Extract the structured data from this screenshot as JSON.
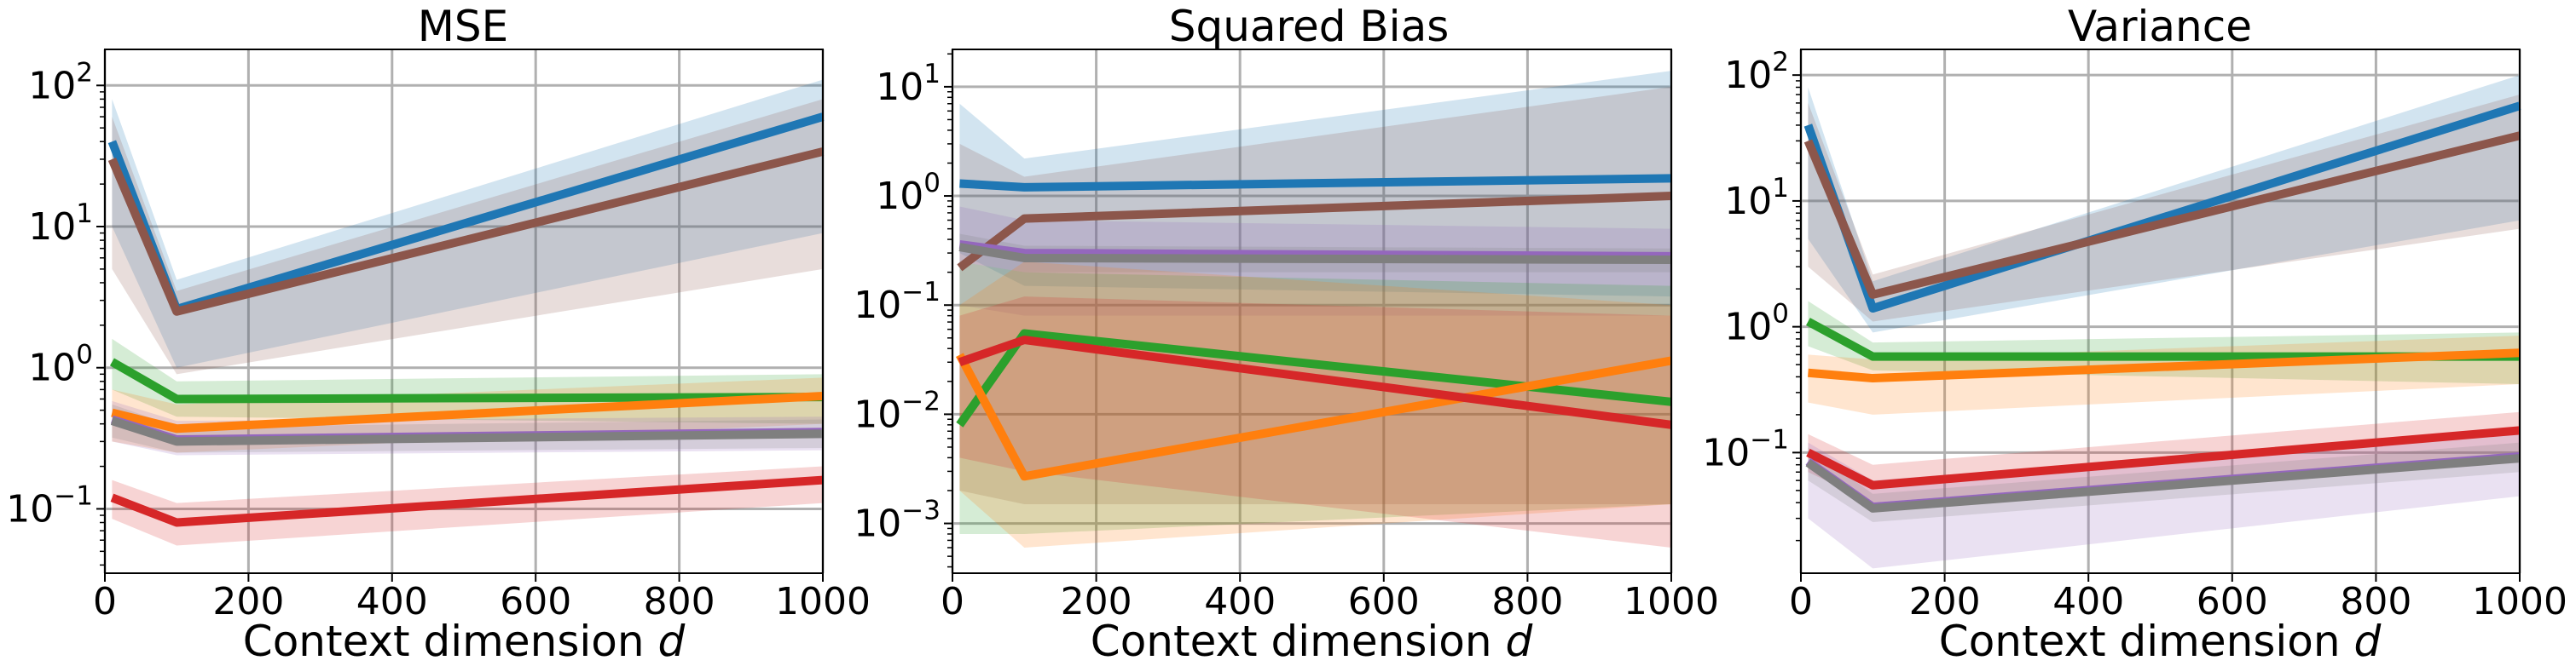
{
  "chart_data": [
    {
      "type": "line",
      "title": "MSE",
      "xlabel": "Context dimension",
      "xlabel_var": "d",
      "ylabel": "",
      "yscale": "log",
      "xlim": [
        0,
        1000
      ],
      "ylim": [
        0.035,
        180
      ],
      "xticks": [
        0,
        200,
        400,
        600,
        800,
        1000
      ],
      "yticks": [
        {
          "value": 0.1,
          "base": "10",
          "exp": "−1"
        },
        {
          "value": 1,
          "base": "10",
          "exp": "0"
        },
        {
          "value": 10,
          "base": "10",
          "exp": "1"
        },
        {
          "value": 100,
          "base": "10",
          "exp": "2"
        }
      ],
      "grid": true,
      "x": [
        10,
        100,
        1000
      ],
      "series": [
        {
          "color": "#1f77b4",
          "values": [
            40,
            2.6,
            60
          ],
          "lower": [
            10,
            1.0,
            9
          ],
          "upper": [
            80,
            4.2,
            110
          ]
        },
        {
          "color": "#8c564b",
          "values": [
            30,
            2.5,
            34
          ],
          "lower": [
            5,
            0.9,
            5
          ],
          "upper": [
            60,
            3.5,
            80
          ]
        },
        {
          "color": "#2ca02c",
          "values": [
            1.1,
            0.6,
            0.62
          ],
          "lower": [
            0.7,
            0.45,
            0.4
          ],
          "upper": [
            1.6,
            0.8,
            0.9
          ]
        },
        {
          "color": "#ff7f0e",
          "values": [
            0.48,
            0.37,
            0.63
          ],
          "lower": [
            0.3,
            0.25,
            0.4
          ],
          "upper": [
            0.7,
            0.55,
            0.85
          ]
        },
        {
          "color": "#9467bd",
          "values": [
            0.43,
            0.31,
            0.35
          ],
          "lower": [
            0.3,
            0.24,
            0.26
          ],
          "upper": [
            0.58,
            0.42,
            0.45
          ]
        },
        {
          "color": "#7f7f7f",
          "values": [
            0.42,
            0.3,
            0.34
          ],
          "lower": [
            0.32,
            0.25,
            0.27
          ],
          "upper": [
            0.55,
            0.38,
            0.43
          ]
        },
        {
          "color": "#d62728",
          "values": [
            0.12,
            0.08,
            0.16
          ],
          "lower": [
            0.085,
            0.055,
            0.11
          ],
          "upper": [
            0.16,
            0.11,
            0.2
          ]
        }
      ]
    },
    {
      "type": "line",
      "title": "Squared Bias",
      "xlabel": "Context dimension",
      "xlabel_var": "d",
      "ylabel": "",
      "yscale": "log",
      "xlim": [
        0,
        1000
      ],
      "ylim": [
        0.00035,
        22
      ],
      "xticks": [
        0,
        200,
        400,
        600,
        800,
        1000
      ],
      "yticks": [
        {
          "value": 0.001,
          "base": "10",
          "exp": "−3"
        },
        {
          "value": 0.01,
          "base": "10",
          "exp": "−2"
        },
        {
          "value": 0.1,
          "base": "10",
          "exp": "−1"
        },
        {
          "value": 1,
          "base": "10",
          "exp": "0"
        },
        {
          "value": 10,
          "base": "10",
          "exp": "1"
        }
      ],
      "grid": true,
      "x": [
        10,
        100,
        1000
      ],
      "series": [
        {
          "color": "#1f77b4",
          "values": [
            1.3,
            1.2,
            1.45
          ],
          "lower": [
            0.3,
            0.15,
            0.12
          ],
          "upper": [
            7.0,
            2.2,
            14.0
          ]
        },
        {
          "color": "#8c564b",
          "values": [
            0.22,
            0.62,
            1.0
          ],
          "lower": [
            0.002,
            0.0015,
            0.0015
          ],
          "upper": [
            3.0,
            1.5,
            10.0
          ]
        },
        {
          "color": "#9467bd",
          "values": [
            0.36,
            0.3,
            0.28
          ],
          "lower": [
            0.1,
            0.08,
            0.08
          ],
          "upper": [
            0.8,
            0.6,
            0.5
          ]
        },
        {
          "color": "#7f7f7f",
          "values": [
            0.34,
            0.27,
            0.26
          ],
          "lower": [
            0.25,
            0.2,
            0.2
          ],
          "upper": [
            0.45,
            0.35,
            0.33
          ]
        },
        {
          "color": "#2ca02c",
          "values": [
            0.008,
            0.055,
            0.013
          ],
          "lower": [
            0.0008,
            0.0008,
            0.0015
          ],
          "upper": [
            0.25,
            0.2,
            0.15
          ]
        },
        {
          "color": "#ff7f0e",
          "values": [
            0.035,
            0.0027,
            0.031
          ],
          "lower": [
            0.002,
            0.0006,
            0.0015
          ],
          "upper": [
            0.1,
            0.25,
            0.1
          ]
        },
        {
          "color": "#d62728",
          "values": [
            0.03,
            0.048,
            0.008
          ],
          "lower": [
            0.004,
            0.003,
            0.0006
          ],
          "upper": [
            0.08,
            0.12,
            0.08
          ]
        }
      ]
    },
    {
      "type": "line",
      "title": "Variance",
      "xlabel": "Context dimension",
      "xlabel_var": "d",
      "ylabel": "",
      "yscale": "log",
      "xlim": [
        0,
        1000
      ],
      "ylim": [
        0.011,
        160
      ],
      "xticks": [
        0,
        200,
        400,
        600,
        800,
        1000
      ],
      "yticks": [
        {
          "value": 0.1,
          "base": "10",
          "exp": "−1"
        },
        {
          "value": 1,
          "base": "10",
          "exp": "0"
        },
        {
          "value": 10,
          "base": "10",
          "exp": "1"
        },
        {
          "value": 100,
          "base": "10",
          "exp": "2"
        }
      ],
      "grid": true,
      "x": [
        10,
        100,
        1000
      ],
      "series": [
        {
          "color": "#1f77b4",
          "values": [
            40,
            1.4,
            57
          ],
          "lower": [
            5,
            0.9,
            7
          ],
          "upper": [
            80,
            2.3,
            100
          ]
        },
        {
          "color": "#8c564b",
          "values": [
            30,
            1.8,
            33
          ],
          "lower": [
            3,
            1.1,
            6
          ],
          "upper": [
            60,
            2.6,
            70
          ]
        },
        {
          "color": "#2ca02c",
          "values": [
            1.1,
            0.58,
            0.58
          ],
          "lower": [
            0.7,
            0.45,
            0.35
          ],
          "upper": [
            1.6,
            0.75,
            0.9
          ]
        },
        {
          "color": "#ff7f0e",
          "values": [
            0.43,
            0.39,
            0.62
          ],
          "lower": [
            0.25,
            0.2,
            0.35
          ],
          "upper": [
            0.6,
            0.55,
            0.85
          ]
        },
        {
          "color": "#d62728",
          "values": [
            0.1,
            0.055,
            0.15
          ],
          "lower": [
            0.07,
            0.04,
            0.1
          ],
          "upper": [
            0.14,
            0.08,
            0.21
          ]
        },
        {
          "color": "#9467bd",
          "values": [
            0.085,
            0.037,
            0.093
          ],
          "lower": [
            0.03,
            0.012,
            0.045
          ],
          "upper": [
            0.12,
            0.06,
            0.15
          ]
        },
        {
          "color": "#7f7f7f",
          "values": [
            0.083,
            0.036,
            0.09
          ],
          "lower": [
            0.06,
            0.028,
            0.07
          ],
          "upper": [
            0.11,
            0.047,
            0.12
          ]
        }
      ]
    }
  ]
}
